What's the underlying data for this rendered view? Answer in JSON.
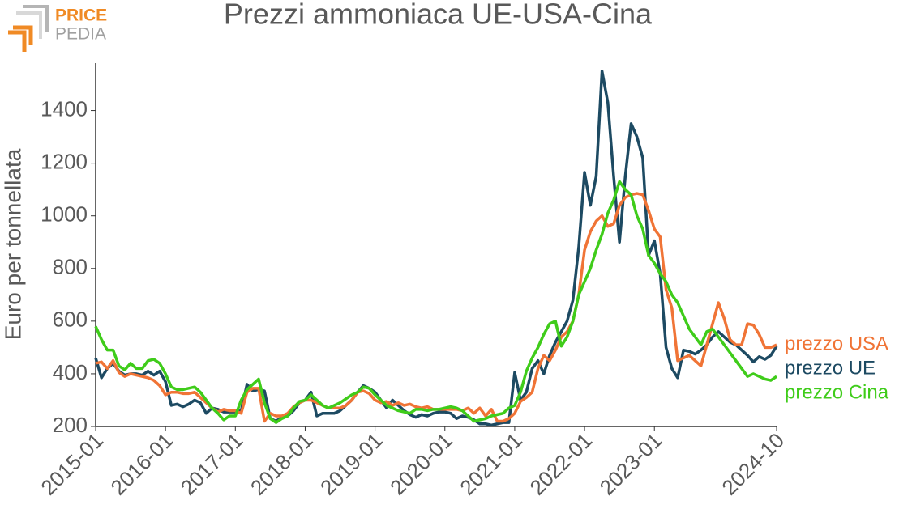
{
  "logo": {
    "line1": "PRICE",
    "line2": "PEDIA"
  },
  "chart_data": {
    "type": "line",
    "title": "Prezzi ammoniaca UE-USA-Cina",
    "y_label": "Euro per tonnellata",
    "x": [
      "2015-01",
      "2015-02",
      "2015-03",
      "2015-04",
      "2015-05",
      "2015-06",
      "2015-07",
      "2015-08",
      "2015-09",
      "2015-10",
      "2015-11",
      "2015-12",
      "2016-01",
      "2016-02",
      "2016-03",
      "2016-04",
      "2016-05",
      "2016-06",
      "2016-07",
      "2016-08",
      "2016-09",
      "2016-10",
      "2016-11",
      "2016-12",
      "2017-01",
      "2017-02",
      "2017-03",
      "2017-04",
      "2017-05",
      "2017-06",
      "2017-07",
      "2017-08",
      "2017-09",
      "2017-10",
      "2017-11",
      "2017-12",
      "2018-01",
      "2018-02",
      "2018-03",
      "2018-04",
      "2018-05",
      "2018-06",
      "2018-07",
      "2018-08",
      "2018-09",
      "2018-10",
      "2018-11",
      "2018-12",
      "2019-01",
      "2019-02",
      "2019-03",
      "2019-04",
      "2019-05",
      "2019-06",
      "2019-07",
      "2019-08",
      "2019-09",
      "2019-10",
      "2019-11",
      "2019-12",
      "2020-01",
      "2020-02",
      "2020-03",
      "2020-04",
      "2020-05",
      "2020-06",
      "2020-07",
      "2020-08",
      "2020-09",
      "2020-10",
      "2020-11",
      "2020-12",
      "2021-01",
      "2021-02",
      "2021-03",
      "2021-04",
      "2021-05",
      "2021-06",
      "2021-07",
      "2021-08",
      "2021-09",
      "2021-10",
      "2021-11",
      "2021-12",
      "2022-01",
      "2022-02",
      "2022-03",
      "2022-04",
      "2022-05",
      "2022-06",
      "2022-07",
      "2022-08",
      "2022-09",
      "2022-10",
      "2022-11",
      "2022-12",
      "2023-01",
      "2023-02",
      "2023-03",
      "2023-04",
      "2023-05",
      "2023-06",
      "2023-07",
      "2023-08",
      "2023-09",
      "2023-10",
      "2023-11",
      "2023-12",
      "2024-01",
      "2024-02",
      "2024-03",
      "2024-04",
      "2024-05",
      "2024-06",
      "2024-07",
      "2024-08",
      "2024-09",
      "2024-10"
    ],
    "series": [
      {
        "name": "prezzo UE",
        "color": "#1d4a62",
        "values": [
          460,
          385,
          420,
          440,
          410,
          395,
          400,
          400,
          395,
          410,
          395,
          410,
          370,
          280,
          285,
          275,
          285,
          300,
          290,
          250,
          270,
          265,
          255,
          255,
          255,
          260,
          360,
          335,
          340,
          335,
          230,
          220,
          235,
          240,
          260,
          290,
          300,
          330,
          240,
          250,
          250,
          250,
          260,
          280,
          300,
          330,
          355,
          345,
          330,
          300,
          270,
          300,
          280,
          260,
          245,
          235,
          245,
          240,
          250,
          255,
          255,
          250,
          230,
          240,
          235,
          225,
          210,
          210,
          205,
          210,
          215,
          215,
          405,
          300,
          330,
          420,
          450,
          400,
          470,
          520,
          560,
          600,
          680,
          880,
          1165,
          1040,
          1150,
          1550,
          1430,
          1150,
          900,
          1150,
          1350,
          1300,
          1220,
          850,
          905,
          780,
          500,
          420,
          385,
          490,
          485,
          475,
          490,
          510,
          540,
          560,
          540,
          520,
          510,
          490,
          470,
          445,
          465,
          455,
          470,
          505
        ]
      },
      {
        "name": "prezzo USA",
        "color": "#f07436",
        "values": [
          440,
          445,
          420,
          450,
          405,
          390,
          400,
          395,
          390,
          385,
          375,
          355,
          320,
          330,
          330,
          325,
          325,
          330,
          310,
          290,
          270,
          255,
          265,
          260,
          260,
          250,
          330,
          345,
          345,
          220,
          250,
          240,
          240,
          250,
          275,
          290,
          300,
          300,
          290,
          280,
          270,
          270,
          270,
          280,
          300,
          330,
          335,
          325,
          300,
          290,
          295,
          280,
          290,
          280,
          285,
          275,
          270,
          275,
          265,
          265,
          265,
          265,
          265,
          260,
          270,
          250,
          270,
          240,
          265,
          220,
          220,
          230,
          250,
          295,
          310,
          330,
          420,
          470,
          450,
          490,
          540,
          560,
          600,
          700,
          870,
          940,
          980,
          1000,
          960,
          970,
          1040,
          1070,
          1080,
          1085,
          1080,
          1020,
          950,
          920,
          720,
          650,
          450,
          460,
          470,
          450,
          430,
          510,
          590,
          670,
          610,
          530,
          510,
          510,
          590,
          585,
          550,
          500,
          500,
          510
        ]
      },
      {
        "name": "prezzo Cina",
        "color": "#3fcc1a",
        "values": [
          580,
          530,
          490,
          490,
          430,
          415,
          440,
          420,
          420,
          450,
          455,
          440,
          400,
          350,
          340,
          340,
          345,
          350,
          330,
          300,
          270,
          250,
          225,
          240,
          240,
          300,
          340,
          360,
          380,
          290,
          230,
          215,
          230,
          240,
          270,
          295,
          300,
          320,
          300,
          280,
          270,
          280,
          290,
          305,
          320,
          330,
          350,
          345,
          320,
          300,
          280,
          270,
          260,
          255,
          250,
          265,
          265,
          260,
          265,
          265,
          270,
          275,
          270,
          260,
          240,
          220,
          225,
          230,
          240,
          245,
          250,
          270,
          280,
          330,
          410,
          460,
          500,
          550,
          590,
          600,
          505,
          540,
          600,
          700,
          750,
          800,
          870,
          930,
          1010,
          1060,
          1130,
          1100,
          1080,
          1000,
          950,
          850,
          820,
          780,
          750,
          700,
          670,
          620,
          570,
          540,
          510,
          560,
          570,
          540,
          510,
          480,
          450,
          420,
          390,
          400,
          390,
          380,
          375,
          390
        ]
      }
    ],
    "ylim": [
      200,
      1580
    ],
    "yticks": [
      200,
      400,
      600,
      800,
      1000,
      1200,
      1400
    ],
    "xticks": [
      "2015-01",
      "2016-01",
      "2017-01",
      "2018-01",
      "2019-01",
      "2020-01",
      "2021-01",
      "2022-01",
      "2023-01",
      "2024-10"
    ]
  }
}
